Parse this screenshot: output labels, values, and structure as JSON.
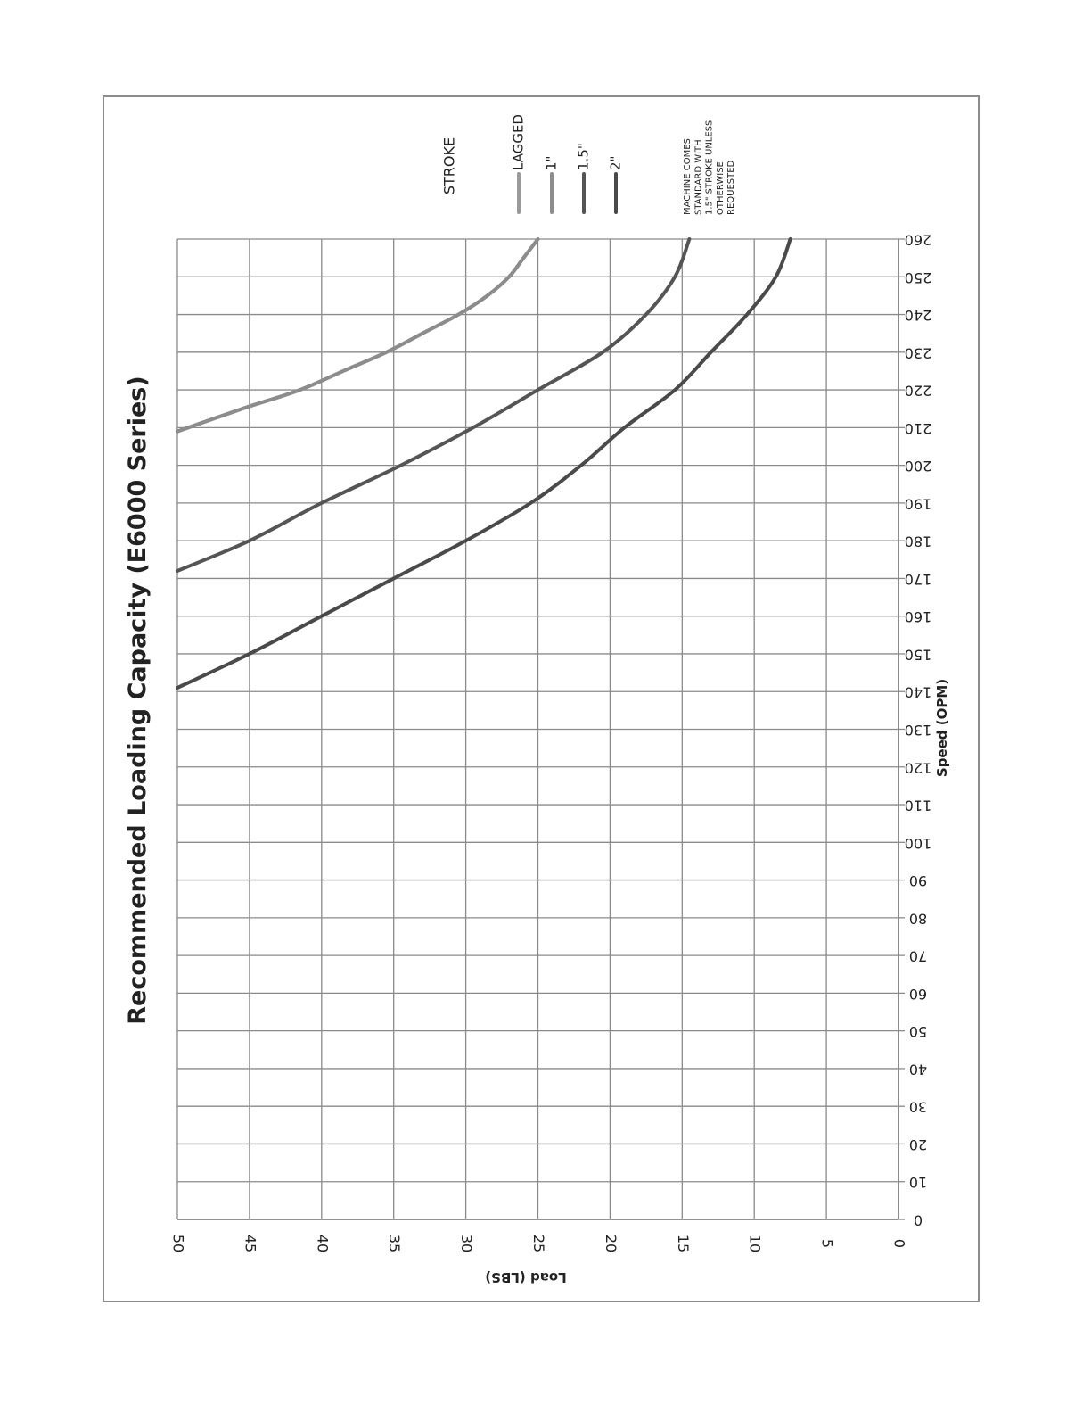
{
  "chart_data": {
    "type": "line",
    "title": "Recommended Loading Capacity (E6000 Series)",
    "xlabel": "Speed (OPM)",
    "ylabel": "Load (LBS)",
    "xlim": [
      0,
      260
    ],
    "ylim": [
      0,
      50
    ],
    "x_ticks": [
      "0",
      "10",
      "20",
      "30",
      "40",
      "50",
      "60",
      "70",
      "80",
      "90",
      "100",
      "110",
      "120",
      "130",
      "140",
      "150",
      "160",
      "170",
      "180",
      "190",
      "200",
      "210",
      "220",
      "230",
      "240",
      "250",
      "260"
    ],
    "y_ticks": [
      "0",
      "5",
      "10",
      "15",
      "20",
      "25",
      "30",
      "35",
      "40",
      "45",
      "50"
    ],
    "grid": true,
    "legend_title": "STROKE",
    "legend_position": "top-right",
    "note": [
      "MACHINE COMES",
      "STANDARD WITH",
      "1.5\" STROKE UNLESS",
      "OTHERWISE",
      "REQUESTED"
    ],
    "series": [
      {
        "name": "LAGGED",
        "color": "#9a9a9a",
        "x": [
          209,
          215,
          220,
          225,
          230,
          235,
          240,
          245,
          250,
          255,
          260
        ],
        "y": [
          50,
          45.5,
          41.5,
          38.5,
          35.5,
          33,
          30.5,
          28.5,
          27,
          26,
          25
        ]
      },
      {
        "name": "1\"",
        "color": "#8c8c8c",
        "x": [
          209,
          215,
          220,
          225,
          230,
          235,
          240,
          245,
          250,
          255,
          260
        ],
        "y": [
          50,
          45.5,
          41.5,
          38.5,
          35.5,
          33,
          30.5,
          28.5,
          27,
          26,
          25
        ]
      },
      {
        "name": "1.5\"",
        "color": "#555555",
        "x": [
          172,
          180,
          190,
          200,
          210,
          220,
          230,
          240,
          250,
          260
        ],
        "y": [
          50,
          45,
          40,
          34.5,
          29.5,
          25,
          20.5,
          17.5,
          15.5,
          14.5
        ]
      },
      {
        "name": "2\"",
        "color": "#4a4a4a",
        "x": [
          141,
          150,
          160,
          170,
          180,
          190,
          200,
          210,
          220,
          230,
          240,
          250,
          260
        ],
        "y": [
          50,
          45,
          40,
          35,
          30,
          25.5,
          22,
          19,
          15.5,
          13,
          10.5,
          8.5,
          7.5
        ]
      }
    ]
  }
}
